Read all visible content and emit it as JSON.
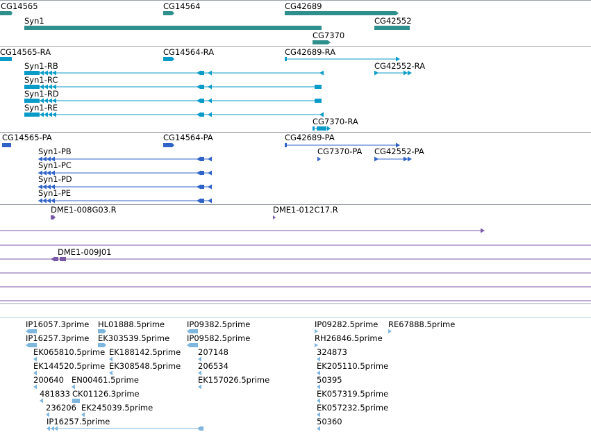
{
  "colors": {
    "gene": "#2f8f8c",
    "transcript": "#0a9bc9",
    "protein": "#2f63c8",
    "clone": "#7a5aa8",
    "est": "#7fb6de",
    "separator": "#9aa0a6"
  },
  "tracks": {
    "genes": [
      {
        "label": "CG14565"
      },
      {
        "label": "CG14564"
      },
      {
        "label": "CG42689"
      },
      {
        "label": "Syn1"
      },
      {
        "label": "CG42552"
      },
      {
        "label": "CG7370"
      }
    ],
    "transcripts": [
      {
        "label": "CG14565-RA"
      },
      {
        "label": "CG14564-RA"
      },
      {
        "label": "CG42689-RA"
      },
      {
        "label": "Syn1-RB"
      },
      {
        "label": "CG42552-RA"
      },
      {
        "label": "Syn1-RC"
      },
      {
        "label": "Syn1-RD"
      },
      {
        "label": "Syn1-RE"
      },
      {
        "label": "CG7370-RA"
      }
    ],
    "proteins": [
      {
        "label": "CG14565-PA"
      },
      {
        "label": "CG14564-PA"
      },
      {
        "label": "CG42689-PA"
      },
      {
        "label": "Syn1-PB"
      },
      {
        "label": "CG7370-PA"
      },
      {
        "label": "CG42552-PA"
      },
      {
        "label": "Syn1-PC"
      },
      {
        "label": "Syn1-PD"
      },
      {
        "label": "Syn1-PE"
      }
    ],
    "clones": [
      {
        "label": "DME1-008G03.R"
      },
      {
        "label": "DME1-012C17.R"
      },
      {
        "label": "DME1-009J01"
      }
    ],
    "ests": [
      {
        "label": "IP16057.3prime"
      },
      {
        "label": "HL01888.5prime"
      },
      {
        "label": "IP09382.5prime"
      },
      {
        "label": "IP09282.5prime"
      },
      {
        "label": "RE67888.5prime"
      },
      {
        "label": "IP16257.3prime"
      },
      {
        "label": "EK303539.5prime"
      },
      {
        "label": "IP09582.5prime"
      },
      {
        "label": "RH26846.5prime"
      },
      {
        "label": "EK065810.5prime"
      },
      {
        "label": "EK188142.5prime"
      },
      {
        "label": "207148"
      },
      {
        "label": "324873"
      },
      {
        "label": "EK144520.5prime"
      },
      {
        "label": "EK308548.5prime"
      },
      {
        "label": "206534"
      },
      {
        "label": "EK205110.5prime"
      },
      {
        "label": "200640"
      },
      {
        "label": "EN00461.5prime"
      },
      {
        "label": "EK157026.5prime"
      },
      {
        "label": "50395"
      },
      {
        "label": "481833"
      },
      {
        "label": "CK01126.3prime"
      },
      {
        "label": "EK057319.5prime"
      },
      {
        "label": "236206"
      },
      {
        "label": "EK245039.5prime"
      },
      {
        "label": "EK057232.5prime"
      },
      {
        "label": "IP16257.5prime"
      },
      {
        "label": "50360"
      }
    ]
  }
}
